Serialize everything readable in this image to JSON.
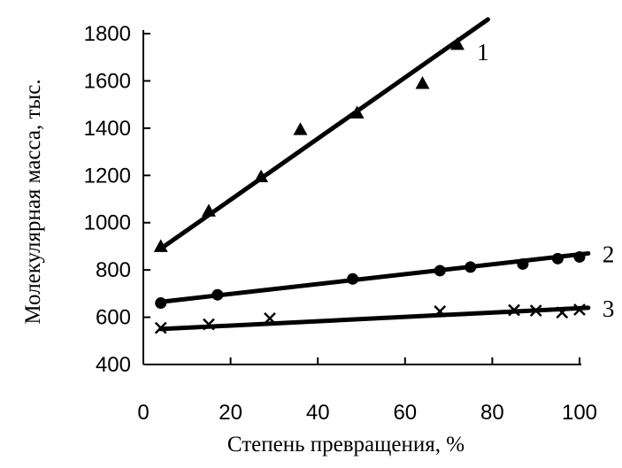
{
  "chart_data": {
    "type": "scatter",
    "title": "",
    "xlabel": "Степень превращения, %",
    "ylabel": "Молекулярная масса, тыс.",
    "xlim": [
      0,
      100
    ],
    "ylim": [
      400,
      1800
    ],
    "xticks": [
      0,
      20,
      40,
      60,
      80,
      100
    ],
    "yticks": [
      400,
      600,
      800,
      1000,
      1200,
      1400,
      1600,
      1800
    ],
    "xtick_labels": [
      "0",
      "20",
      "40",
      "60",
      "80",
      "100"
    ],
    "ytick_labels": [
      "400",
      "600",
      "800",
      "1000",
      "1200",
      "1400",
      "1600",
      "1800"
    ],
    "grid": false,
    "legend": "none",
    "series": [
      {
        "label": "1",
        "marker": "triangle",
        "points": [
          [
            4,
            900
          ],
          [
            15,
            1050
          ],
          [
            27,
            1195
          ],
          [
            36,
            1395
          ],
          [
            49,
            1465
          ],
          [
            64,
            1590
          ],
          [
            72,
            1755
          ]
        ],
        "fit": [
          [
            4,
            890
          ],
          [
            79,
            1860
          ]
        ]
      },
      {
        "label": "2",
        "marker": "circle",
        "points": [
          [
            4,
            660
          ],
          [
            17,
            695
          ],
          [
            48,
            762
          ],
          [
            68,
            797
          ],
          [
            75,
            812
          ],
          [
            87,
            825
          ],
          [
            95,
            848
          ],
          [
            100,
            855
          ]
        ],
        "fit": [
          [
            4,
            665
          ],
          [
            102,
            870
          ]
        ]
      },
      {
        "label": "3",
        "marker": "cross",
        "points": [
          [
            4,
            555
          ],
          [
            15,
            570
          ],
          [
            29,
            595
          ],
          [
            68,
            625
          ],
          [
            85,
            630
          ],
          [
            90,
            628
          ],
          [
            96,
            620
          ],
          [
            100,
            632
          ]
        ],
        "fit": [
          [
            4,
            550
          ],
          [
            102,
            640
          ]
        ]
      }
    ]
  }
}
